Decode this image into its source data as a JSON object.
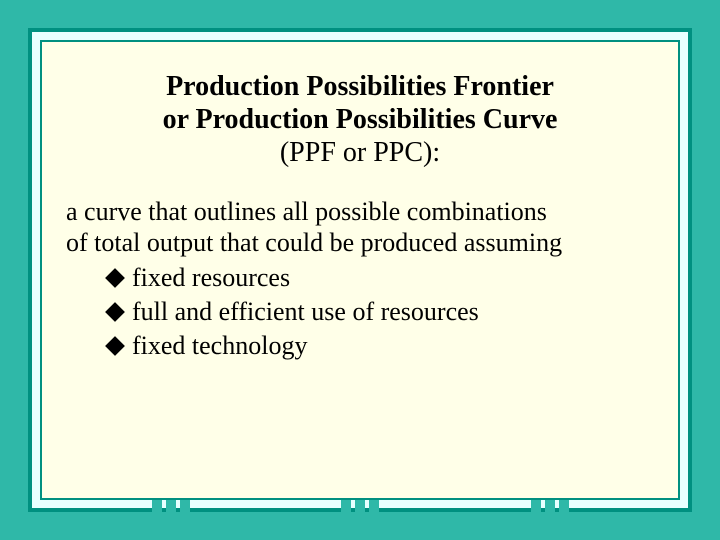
{
  "colors": {
    "outer_background": "#2fb8a8",
    "frame_border_dark": "#009080",
    "frame_fill_light": "#e8ffff",
    "content_background": "#ffffe8",
    "text_color": "#000000",
    "bullet_color": "#000000"
  },
  "typography": {
    "title_font_family": "Times New Roman",
    "title_font_size_pt": 21,
    "title_font_weight": "bold",
    "subtitle_font_size_pt": 21,
    "body_font_size_pt": 20
  },
  "title": {
    "line1": "Production Possibilities Frontier",
    "line2": "or Production Possibilities Curve",
    "line3": "(PPF or PPC):"
  },
  "body": {
    "intro_line1": "a curve that outlines all possible combinations",
    "intro_line2": "of total output that could be produced assuming"
  },
  "bullets": [
    {
      "label": "fixed resources"
    },
    {
      "label": "full and efficient use of resources"
    },
    {
      "label": "fixed technology"
    }
  ],
  "decoration": {
    "comb_count_per_row": 3,
    "comb_tooth_color": "#2fb8a8"
  }
}
